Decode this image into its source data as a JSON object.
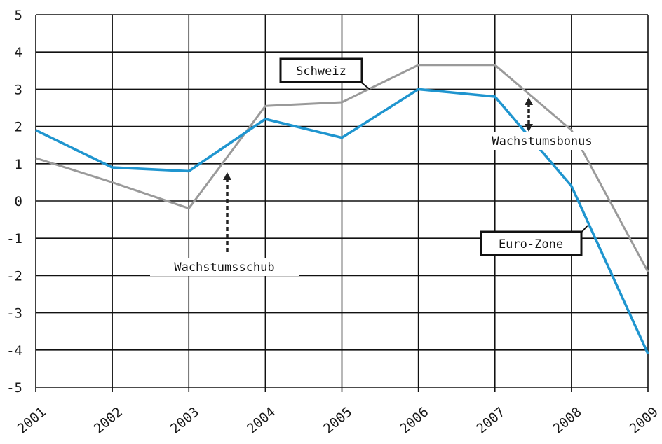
{
  "chart_data": {
    "type": "line",
    "x": [
      "2001",
      "2002",
      "2003",
      "2004",
      "2005",
      "2006",
      "2007",
      "2008",
      "2009"
    ],
    "series": [
      {
        "name": "Euro-Zone",
        "color": "#1f95cf",
        "values": [
          1.9,
          0.9,
          0.8,
          2.2,
          1.7,
          3.0,
          2.8,
          0.4,
          -4.1
        ]
      },
      {
        "name": "Schweiz",
        "color": "#9a9a9a",
        "values": [
          1.15,
          0.5,
          -0.2,
          2.55,
          2.65,
          3.65,
          3.65,
          1.9,
          -1.9
        ]
      }
    ],
    "ylim": [
      -5,
      5
    ],
    "yticks": [
      "5",
      "4",
      "3",
      "2",
      "1",
      "0",
      "-1",
      "-2",
      "-3",
      "-4",
      "-5"
    ],
    "grid": true,
    "annotations": [
      {
        "text": "Wachstumsschub"
      },
      {
        "text": "Wachstumsbonus"
      }
    ]
  }
}
